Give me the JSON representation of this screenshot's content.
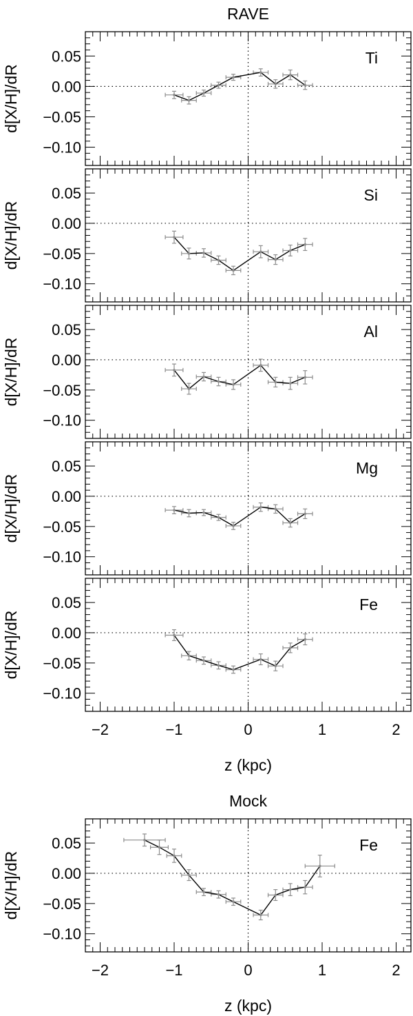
{
  "chart_data": [
    {
      "type": "line",
      "title": "RAVE",
      "label": "Ti",
      "xlabel": "",
      "ylabel": "d[X/H]/dR",
      "xlim": [
        -2.2,
        2.2
      ],
      "ylim": [
        -0.13,
        0.09
      ],
      "yticks": [
        0.05,
        0.0,
        -0.05,
        -0.1
      ],
      "ytick_labels": [
        "0.05",
        "0.00",
        "−0.05",
        "−0.10"
      ],
      "x": [
        -1.0,
        -0.8,
        -0.6,
        -0.4,
        -0.2,
        0.17,
        0.37,
        0.57,
        0.77
      ],
      "y": [
        -0.014,
        -0.023,
        -0.011,
        0.002,
        0.015,
        0.023,
        0.004,
        0.019,
        0.002
      ],
      "yerr": [
        0.006,
        0.006,
        0.005,
        0.005,
        0.005,
        0.006,
        0.007,
        0.008,
        0.007
      ],
      "xerr": [
        0.12,
        0.1,
        0.1,
        0.1,
        0.1,
        0.1,
        0.1,
        0.1,
        0.1
      ]
    },
    {
      "type": "line",
      "title": "",
      "label": "Si",
      "xlabel": "",
      "ylabel": "d[X/H]/dR",
      "xlim": [
        -2.2,
        2.2
      ],
      "ylim": [
        -0.13,
        0.09
      ],
      "yticks": [
        0.05,
        0.0,
        -0.05,
        -0.1
      ],
      "ytick_labels": [
        "0.05",
        "0.00",
        "−0.05",
        "−0.10"
      ],
      "x": [
        -1.0,
        -0.8,
        -0.6,
        -0.4,
        -0.2,
        0.17,
        0.37,
        0.57,
        0.77
      ],
      "y": [
        -0.023,
        -0.05,
        -0.049,
        -0.061,
        -0.078,
        -0.047,
        -0.06,
        -0.045,
        -0.035
      ],
      "yerr": [
        0.01,
        0.009,
        0.007,
        0.007,
        0.007,
        0.01,
        0.008,
        0.009,
        0.01
      ],
      "xerr": [
        0.12,
        0.1,
        0.1,
        0.1,
        0.1,
        0.1,
        0.1,
        0.1,
        0.1
      ]
    },
    {
      "type": "line",
      "title": "",
      "label": "Al",
      "xlabel": "",
      "ylabel": "d[X/H]/dR",
      "xlim": [
        -2.2,
        2.2
      ],
      "ylim": [
        -0.13,
        0.09
      ],
      "yticks": [
        0.05,
        0.0,
        -0.05,
        -0.1
      ],
      "ytick_labels": [
        "0.05",
        "0.00",
        "−0.05",
        "−0.10"
      ],
      "x": [
        -1.0,
        -0.8,
        -0.6,
        -0.4,
        -0.2,
        0.17,
        0.37,
        0.57,
        0.77
      ],
      "y": [
        -0.017,
        -0.048,
        -0.028,
        -0.036,
        -0.041,
        -0.009,
        -0.037,
        -0.039,
        -0.029
      ],
      "yerr": [
        0.01,
        0.009,
        0.007,
        0.007,
        0.008,
        0.01,
        0.008,
        0.01,
        0.011
      ],
      "xerr": [
        0.12,
        0.1,
        0.1,
        0.1,
        0.1,
        0.1,
        0.1,
        0.1,
        0.1
      ]
    },
    {
      "type": "line",
      "title": "",
      "label": "Mg",
      "xlabel": "",
      "ylabel": "d[X/H]/dR",
      "xlim": [
        -2.2,
        2.2
      ],
      "ylim": [
        -0.13,
        0.09
      ],
      "yticks": [
        0.05,
        0.0,
        -0.05,
        -0.1
      ],
      "ytick_labels": [
        "0.05",
        "0.00",
        "−0.05",
        "−0.10"
      ],
      "x": [
        -1.0,
        -0.8,
        -0.6,
        -0.4,
        -0.2,
        0.17,
        0.37,
        0.57,
        0.77
      ],
      "y": [
        -0.023,
        -0.028,
        -0.027,
        -0.035,
        -0.049,
        -0.018,
        -0.021,
        -0.044,
        -0.029
      ],
      "yerr": [
        0.006,
        0.006,
        0.005,
        0.005,
        0.006,
        0.007,
        0.007,
        0.007,
        0.008
      ],
      "xerr": [
        0.12,
        0.1,
        0.1,
        0.1,
        0.1,
        0.1,
        0.1,
        0.1,
        0.1
      ]
    },
    {
      "type": "line",
      "title": "",
      "label": "Fe",
      "xlabel": "z (kpc)",
      "ylabel": "d[X/H]/dR",
      "xlim": [
        -2.2,
        2.2
      ],
      "ylim": [
        -0.13,
        0.09
      ],
      "yticks": [
        0.05,
        0.0,
        -0.05,
        -0.1
      ],
      "ytick_labels": [
        "0.05",
        "0.00",
        "−0.05",
        "−0.10"
      ],
      "xticks": [
        -2,
        -1,
        0,
        1,
        2
      ],
      "xtick_labels": [
        "−2",
        "−1",
        "0",
        "1",
        "2"
      ],
      "x": [
        -1.0,
        -0.8,
        -0.6,
        -0.4,
        -0.2,
        0.17,
        0.37,
        0.57,
        0.77
      ],
      "y": [
        -0.004,
        -0.038,
        -0.046,
        -0.054,
        -0.061,
        -0.044,
        -0.055,
        -0.025,
        -0.011
      ],
      "yerr": [
        0.009,
        0.007,
        0.006,
        0.006,
        0.006,
        0.009,
        0.008,
        0.008,
        0.009
      ],
      "xerr": [
        0.12,
        0.1,
        0.1,
        0.1,
        0.1,
        0.1,
        0.1,
        0.1,
        0.1
      ]
    },
    {
      "type": "line",
      "title": "Mock",
      "label": "Fe",
      "xlabel": "z (kpc)",
      "ylabel": "d[X/H]/dR",
      "xlim": [
        -2.2,
        2.2
      ],
      "ylim": [
        -0.13,
        0.09
      ],
      "yticks": [
        0.05,
        0.0,
        -0.05,
        -0.1
      ],
      "ytick_labels": [
        "0.05",
        "0.00",
        "−0.05",
        "−0.10"
      ],
      "xticks": [
        -2,
        -1,
        0,
        1,
        2
      ],
      "xtick_labels": [
        "−2",
        "−1",
        "0",
        "1",
        "2"
      ],
      "x": [
        -1.4,
        -1.2,
        -1.0,
        -0.8,
        -0.6,
        -0.4,
        -0.2,
        0.17,
        0.37,
        0.57,
        0.77,
        0.97
      ],
      "y": [
        0.055,
        0.043,
        0.029,
        -0.003,
        -0.031,
        -0.035,
        -0.047,
        -0.069,
        -0.036,
        -0.027,
        -0.023,
        0.012
      ],
      "yerr": [
        0.01,
        0.012,
        0.011,
        0.009,
        0.006,
        0.006,
        0.006,
        0.008,
        0.009,
        0.01,
        0.011,
        0.018
      ],
      "xerr": [
        0.28,
        0.12,
        0.1,
        0.1,
        0.1,
        0.1,
        0.1,
        0.1,
        0.1,
        0.1,
        0.1,
        0.2
      ]
    }
  ]
}
